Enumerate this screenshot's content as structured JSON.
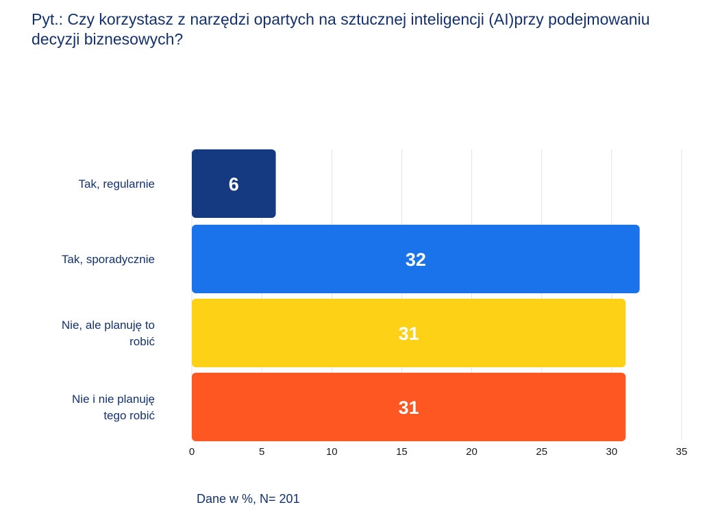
{
  "title": "Pyt.: Czy korzystasz z narzędzi opartych na sztucznej inteligencji (AI)przy podejmowaniu decyzji biznesowych?",
  "footnote": "Dane w %, N= 201",
  "chart_data": {
    "type": "bar",
    "orientation": "horizontal",
    "title": "Pyt.: Czy korzystasz z narzędzi opartych na sztucznej inteligencji (AI)przy podejmowaniu decyzji biznesowych?",
    "xlabel": "",
    "ylabel": "",
    "xlim": [
      0,
      35
    ],
    "xticks": [
      0,
      5,
      10,
      15,
      20,
      25,
      30,
      35
    ],
    "grid": true,
    "legend": "none",
    "categories": [
      [
        "Tak, regularnie"
      ],
      [
        "Tak, sporadycznie"
      ],
      [
        "Nie, ale planuję to",
        "robić"
      ],
      [
        "Nie i nie planuję",
        "tego robić"
      ]
    ],
    "values": [
      6,
      32,
      31,
      31
    ],
    "colors": [
      "#163a82",
      "#1a73ea",
      "#fcd116",
      "#fe5722"
    ]
  }
}
